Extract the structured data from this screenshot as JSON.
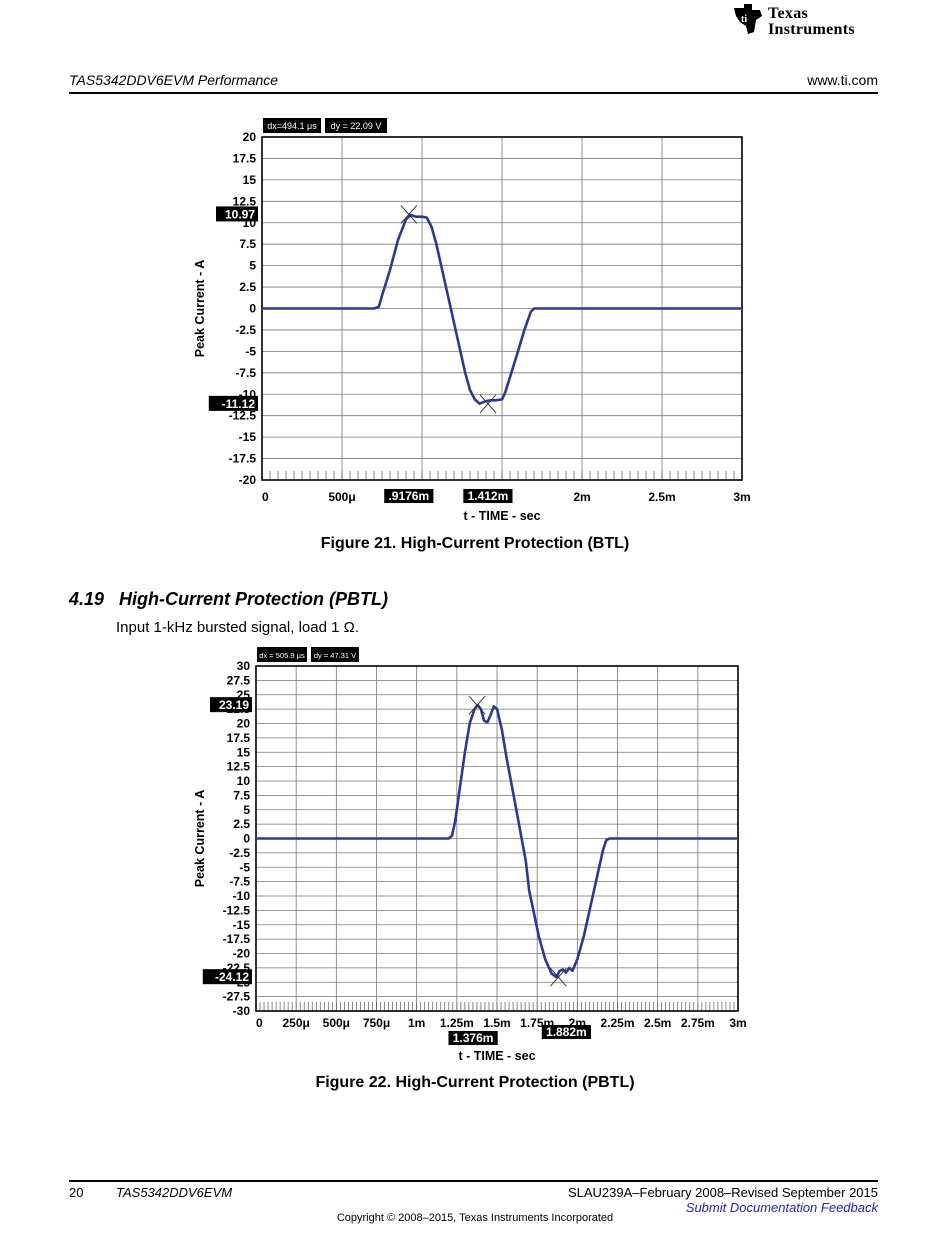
{
  "header": {
    "brand_line1": "Texas",
    "brand_line2": "Instruments",
    "left": "TAS5342DDV6EVM Performance",
    "right": "www.ti.com"
  },
  "section": {
    "number": "4.19",
    "title": "High-Current Protection (PBTL)",
    "text": "Input 1-kHz bursted signal, load 1 Ω."
  },
  "figures": [
    {
      "caption": "Figure 21. High-Current Protection (BTL)",
      "chart_data": {
        "type": "line",
        "title": "",
        "xlabel": "t - TIME - sec",
        "ylabel": "Peak Current - A",
        "xlim": [
          0,
          0.003
        ],
        "ylim": [
          -20,
          20
        ],
        "y_ticks": [
          "20",
          "17.5",
          "15",
          "12.5",
          "10",
          "7.5",
          "5",
          "2.5",
          "0",
          "-2.5",
          "-5",
          "-7.5",
          "-10",
          "-12.5",
          "-15",
          "-17.5",
          "-20"
        ],
        "x_tick_labels": [
          {
            "x": 0,
            "label": "0"
          },
          {
            "x": 0.0005,
            "label": "500μ"
          },
          {
            "x": 0.002,
            "label": "2m"
          },
          {
            "x": 0.0025,
            "label": "2.5m"
          },
          {
            "x": 0.003,
            "label": "3m"
          }
        ],
        "cursor_labels_x": [
          {
            "x": 0.0009176,
            "label": ".9176m"
          },
          {
            "x": 0.001412,
            "label": "1.412m"
          }
        ],
        "cursor_labels_y": [
          {
            "y": 10.97,
            "label": "10.97"
          },
          {
            "y": -11.12,
            "label": "-11.12"
          }
        ],
        "cursor_points": [
          [
            0.0009176,
            10.97
          ],
          [
            0.001412,
            -11.12
          ]
        ],
        "readouts": [
          "dx=494.1 μs",
          "dy = 22.09 V"
        ],
        "grid": true,
        "series": [
          {
            "x": [
              0,
              0.0007,
              0.00073,
              0.00075,
              0.0008,
              0.00085,
              0.0009,
              0.00093,
              0.00096,
              0.001,
              0.00103,
              0.00106,
              0.00109,
              0.00112,
              0.00115,
              0.00118,
              0.00121,
              0.00124,
              0.00127,
              0.0013,
              0.00133,
              0.00136,
              0.0014,
              0.00143,
              0.00146,
              0.0015,
              0.00152,
              0.00155,
              0.0016,
              0.00164,
              0.00168,
              0.0017,
              0.00173,
              0.0018,
              0.003
            ],
            "y": [
              0,
              0,
              0.2,
              1.5,
              4.5,
              8.0,
              10.4,
              10.9,
              10.7,
              10.7,
              10.6,
              9.5,
              7.5,
              5.0,
              2.5,
              0,
              -2.5,
              -5.0,
              -7.5,
              -9.5,
              -10.6,
              -11.1,
              -10.8,
              -10.7,
              -10.7,
              -10.6,
              -9.8,
              -8.0,
              -5.0,
              -2.5,
              -0.4,
              0,
              0,
              0,
              0
            ]
          }
        ],
        "color": "#2a3a8f"
      }
    },
    {
      "caption": "Figure 22. High-Current Protection (PBTL)",
      "chart_data": {
        "type": "line",
        "title": "",
        "xlabel": "t - TIME - sec",
        "ylabel": "Peak Current - A",
        "xlim": [
          0,
          0.003
        ],
        "ylim": [
          -30,
          30
        ],
        "y_ticks": [
          "30",
          "27.5",
          "25",
          "22.5",
          "20",
          "17.5",
          "15",
          "12.5",
          "10",
          "7.5",
          "5",
          "2.5",
          "0",
          "-2.5",
          "-5",
          "-7.5",
          "-10",
          "-12.5",
          "-15",
          "-17.5",
          "-20",
          "-22.5",
          "-25",
          "-27.5",
          "-30"
        ],
        "x_tick_labels": [
          {
            "x": 0,
            "label": "0"
          },
          {
            "x": 0.00025,
            "label": "250μ"
          },
          {
            "x": 0.0005,
            "label": "500μ"
          },
          {
            "x": 0.00075,
            "label": "750μ"
          },
          {
            "x": 0.001,
            "label": "1m"
          },
          {
            "x": 0.00125,
            "label": "1.25m"
          },
          {
            "x": 0.0015,
            "label": "1.5m"
          },
          {
            "x": 0.00175,
            "label": "1.75m"
          },
          {
            "x": 0.002,
            "label": "2m"
          },
          {
            "x": 0.00225,
            "label": "2.25m"
          },
          {
            "x": 0.0025,
            "label": "2.5m"
          },
          {
            "x": 0.00275,
            "label": "2.75m"
          },
          {
            "x": 0.003,
            "label": "3m"
          }
        ],
        "cursor_labels_x": [
          {
            "x": 0.001376,
            "label": "1.376m"
          },
          {
            "x": 0.001882,
            "label": "1.882m"
          }
        ],
        "cursor_labels_y": [
          {
            "y": 23.19,
            "label": "23.19"
          },
          {
            "y": -24.12,
            "label": "-24.12"
          }
        ],
        "cursor_points": [
          [
            0.001376,
            23.19
          ],
          [
            0.001882,
            -24.12
          ]
        ],
        "readouts": [
          "dx = 505.9 μs",
          "dy = 47.31 V"
        ],
        "grid": true,
        "series": [
          {
            "x": [
              0,
              0.0012,
              0.00122,
              0.00124,
              0.00127,
              0.0013,
              0.00133,
              0.00136,
              0.00138,
              0.0014,
              0.00142,
              0.00144,
              0.00146,
              0.00148,
              0.0015,
              0.00153,
              0.00156,
              0.0016,
              0.00164,
              0.00168,
              0.0017,
              0.00173,
              0.00176,
              0.0018,
              0.00184,
              0.00187,
              0.00189,
              0.00191,
              0.00193,
              0.00195,
              0.00197,
              0.002,
              0.00204,
              0.00208,
              0.00212,
              0.00216,
              0.00218,
              0.0022,
              0.003
            ],
            "y": [
              0,
              0,
              0.5,
              3,
              9,
              15,
              20,
              22.5,
              23.2,
              22.5,
              20.5,
              20.2,
              21.5,
              23,
              22.5,
              19,
              14,
              8,
              2,
              -4,
              -9,
              -13,
              -17,
              -21,
              -23.5,
              -24.1,
              -23,
              -22.8,
              -23.3,
              -22.5,
              -23,
              -21,
              -17,
              -12,
              -7,
              -2,
              -0.3,
              0,
              0
            ]
          }
        ],
        "color": "#2a3a8f"
      }
    }
  ],
  "footer": {
    "page_number": "20",
    "doc_name": "TAS5342DDV6EVM",
    "revision": "SLAU239A–February 2008–Revised September 2015",
    "feedback_link": "Submit Documentation Feedback",
    "copyright": "Copyright © 2008–2015, Texas Instruments Incorporated"
  }
}
